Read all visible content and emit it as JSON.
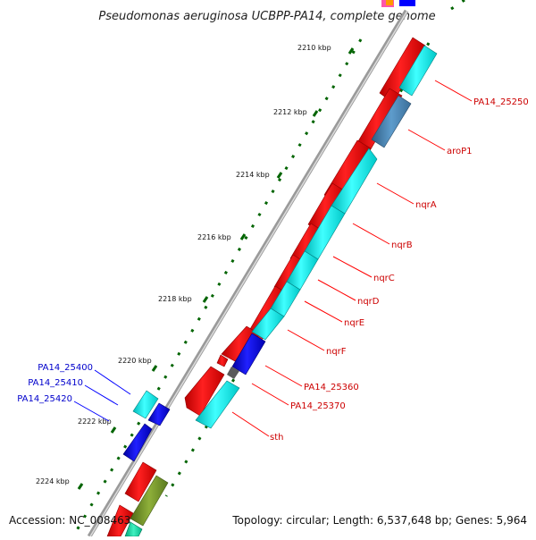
{
  "title": "Pseudomonas aeruginosa UCBPP-PA14, complete genome",
  "footer": {
    "accession": "Accession: NC_008463",
    "topology": "Topology: circular; Length: 6,537,648 bp; Genes: 5,964"
  },
  "scale_labels": [
    "2210 kbp",
    "2212 kbp",
    "2214 kbp",
    "2216 kbp",
    "2218 kbp",
    "2220 kbp",
    "2222 kbp",
    "2224 kbp"
  ],
  "gene_labels_right": [
    "PA14_25250",
    "aroP1",
    "nqrA",
    "nqrB",
    "nqrC",
    "nqrD",
    "nqrE",
    "nqrF",
    "PA14_25360",
    "PA14_25370",
    "sth"
  ],
  "gene_labels_left": [
    "PA14_25400",
    "PA14_25410",
    "PA14_25420"
  ],
  "colors": {
    "red_label": "#cc0000",
    "blue_label": "#0000cc",
    "cds_red": "#ff0000",
    "cds_cyan": "#00ffff",
    "cds_blue": "#0000ff",
    "cds_steel": "#4682b4",
    "cds_olive": "#6b8e23",
    "backbone": "#808080",
    "tick": "#006400"
  }
}
